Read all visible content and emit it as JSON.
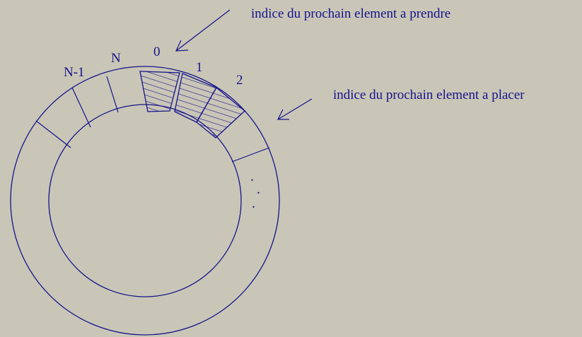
{
  "colors": {
    "background": "#c9c6b8",
    "ink": "#16138a"
  },
  "annotations": {
    "take_index": "indice du prochain element a prendre",
    "place_index": "indice du prochain element a placer"
  },
  "slot_labels": {
    "n_minus_1": "N-1",
    "n": "N",
    "zero": "0",
    "one": "1",
    "two": "2",
    "ellipsis_dot": "."
  },
  "filled_slots": [
    "0",
    "1",
    "2"
  ]
}
